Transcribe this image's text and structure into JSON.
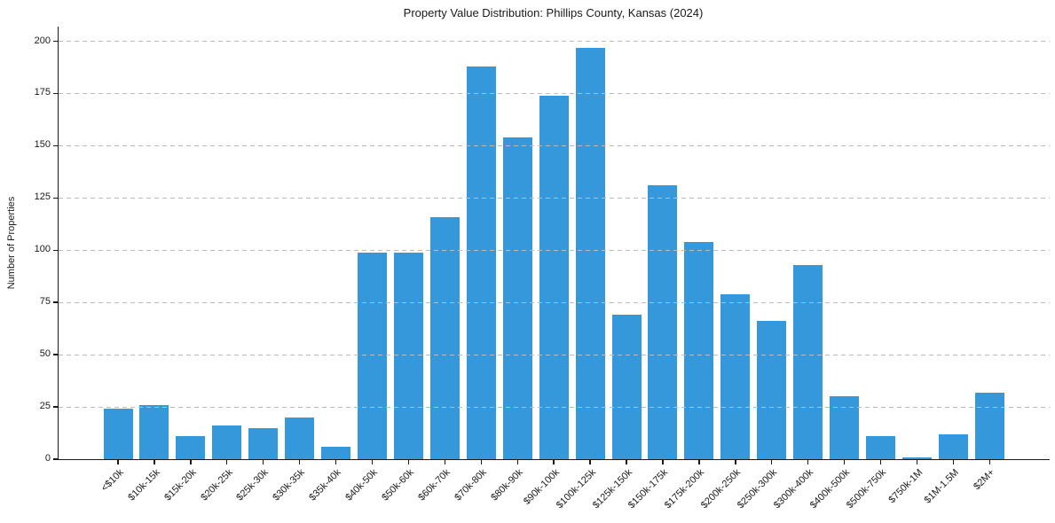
{
  "chart_data": {
    "type": "bar",
    "title": "Property Value Distribution: Phillips County, Kansas (2024)",
    "xlabel": "",
    "ylabel": "Number of Properties",
    "categories": [
      "<$10k",
      "$10k-15k",
      "$15k-20k",
      "$20k-25k",
      "$25k-30k",
      "$30k-35k",
      "$35k-40k",
      "$40k-50k",
      "$50k-60k",
      "$60k-70k",
      "$70k-80k",
      "$80k-90k",
      "$90k-100k",
      "$100k-125k",
      "$125k-150k",
      "$150k-175k",
      "$175k-200k",
      "$200k-250k",
      "$250k-300k",
      "$300k-400k",
      "$400k-500k",
      "$500k-750k",
      "$750k-1M",
      "$1M-1.5M",
      "$2M+"
    ],
    "values": [
      24,
      26,
      11,
      16,
      15,
      20,
      6,
      99,
      99,
      116,
      188,
      154,
      174,
      197,
      69,
      131,
      104,
      79,
      66,
      93,
      30,
      11,
      1,
      12,
      32
    ],
    "yticks": [
      0,
      25,
      50,
      75,
      100,
      125,
      150,
      175,
      200
    ],
    "ylim": [
      0,
      207
    ],
    "x_tick_rotation_deg": 45,
    "grid": "horizontal-dashed",
    "legend": "none",
    "colors": {
      "bar": "#3498db",
      "gridline": "#bcbcbc",
      "axis": "#1a1a1a",
      "text": "#1a1a1a",
      "background": "#ffffff"
    }
  }
}
